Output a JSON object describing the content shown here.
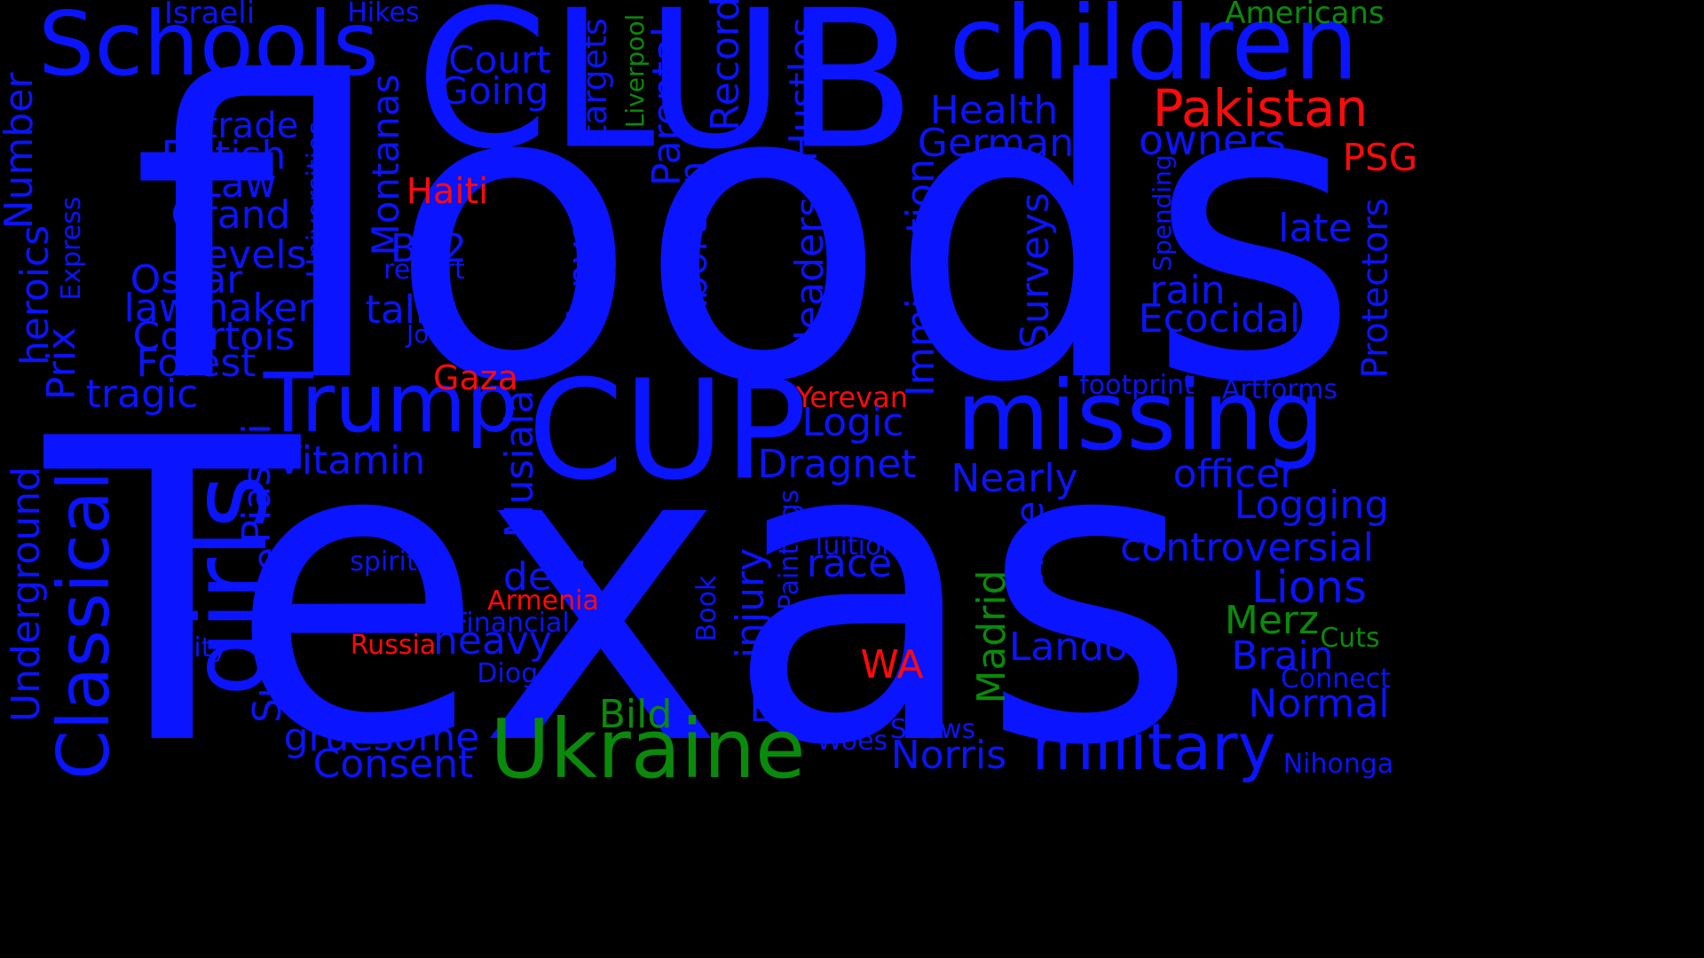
{
  "palette": {
    "blue": "#0a14ff",
    "red": "#ff0a0a",
    "green": "#0a8a0a"
  },
  "words": [
    {
      "id": "floods",
      "text": "floods",
      "color": "blue"
    },
    {
      "id": "texas",
      "text": "Texas",
      "color": "blue"
    },
    {
      "id": "club",
      "text": "CLUB",
      "color": "blue"
    },
    {
      "id": "cup",
      "text": "CUP",
      "color": "blue"
    },
    {
      "id": "children",
      "text": "children",
      "color": "blue"
    },
    {
      "id": "schools",
      "text": "Schools",
      "color": "blue"
    },
    {
      "id": "missing",
      "text": "missing",
      "color": "blue"
    },
    {
      "id": "girls",
      "text": "girls",
      "color": "blue"
    },
    {
      "id": "trump",
      "text": "Trump",
      "color": "blue"
    },
    {
      "id": "ukraine",
      "text": "Ukraine",
      "color": "green"
    },
    {
      "id": "classical",
      "text": "Classical",
      "color": "blue"
    },
    {
      "id": "military",
      "text": "military",
      "color": "blue"
    },
    {
      "id": "pakistan",
      "text": "Pakistan",
      "color": "red"
    },
    {
      "id": "owners",
      "text": "owners",
      "color": "blue"
    },
    {
      "id": "health",
      "text": "Health",
      "color": "blue"
    },
    {
      "id": "german",
      "text": "German",
      "color": "blue"
    },
    {
      "id": "psg",
      "text": "PSG",
      "color": "red"
    },
    {
      "id": "late",
      "text": "late",
      "color": "blue"
    },
    {
      "id": "rain",
      "text": "rain",
      "color": "blue"
    },
    {
      "id": "ecocidal",
      "text": "Ecocidal",
      "color": "blue"
    },
    {
      "id": "protectors",
      "text": "Protectors",
      "color": "blue"
    },
    {
      "id": "spending",
      "text": "Spending",
      "color": "blue"
    },
    {
      "id": "americans",
      "text": "Americans",
      "color": "green"
    },
    {
      "id": "court",
      "text": "Court",
      "color": "blue"
    },
    {
      "id": "going",
      "text": "Going",
      "color": "blue"
    },
    {
      "id": "israeli",
      "text": "Israeli",
      "color": "blue"
    },
    {
      "id": "hikes",
      "text": "Hikes",
      "color": "blue"
    },
    {
      "id": "trade",
      "text": "trade",
      "color": "blue"
    },
    {
      "id": "british",
      "text": "British",
      "color": "blue"
    },
    {
      "id": "law",
      "text": "Law",
      "color": "blue"
    },
    {
      "id": "grand",
      "text": "Grand",
      "color": "blue"
    },
    {
      "id": "levels",
      "text": "Levels",
      "color": "blue"
    },
    {
      "id": "oscar",
      "text": "Oscar",
      "color": "blue"
    },
    {
      "id": "lawmakers",
      "text": "lawmakers",
      "color": "blue"
    },
    {
      "id": "courtois",
      "text": "Courtois",
      "color": "blue"
    },
    {
      "id": "forest",
      "text": "Forest",
      "color": "blue"
    },
    {
      "id": "tragic",
      "text": "tragic",
      "color": "blue"
    },
    {
      "id": "haiti",
      "text": "Haiti",
      "color": "red"
    },
    {
      "id": "b12",
      "text": "B12",
      "color": "blue"
    },
    {
      "id": "report",
      "text": "report",
      "color": "blue"
    },
    {
      "id": "talks",
      "text": "talks",
      "color": "blue"
    },
    {
      "id": "jotas",
      "text": "Jotas",
      "color": "blue"
    },
    {
      "id": "gaza",
      "text": "Gaza",
      "color": "red"
    },
    {
      "id": "vitamin",
      "text": "Vitamin",
      "color": "blue"
    },
    {
      "id": "number",
      "text": "Number",
      "color": "blue"
    },
    {
      "id": "heroics",
      "text": "heroics",
      "color": "blue"
    },
    {
      "id": "express",
      "text": "Express",
      "color": "blue"
    },
    {
      "id": "prix",
      "text": "Prix",
      "color": "blue"
    },
    {
      "id": "universities",
      "text": "Universities",
      "color": "blue"
    },
    {
      "id": "montanas",
      "text": "Montanas",
      "color": "blue"
    },
    {
      "id": "targets",
      "text": "targets",
      "color": "blue"
    },
    {
      "id": "liverpool",
      "text": "Liverpool",
      "color": "green"
    },
    {
      "id": "parental",
      "text": "Parental",
      "color": "blue"
    },
    {
      "id": "record",
      "text": "Record",
      "color": "blue"
    },
    {
      "id": "hustles",
      "text": "Hustles",
      "color": "blue"
    },
    {
      "id": "kenyan",
      "text": "Kenyan",
      "color": "blue"
    },
    {
      "id": "abortion",
      "text": "Abortion",
      "color": "blue"
    },
    {
      "id": "leaders",
      "text": "leaders",
      "color": "blue"
    },
    {
      "id": "immigration",
      "text": "Immigration",
      "color": "blue"
    },
    {
      "id": "surveys",
      "text": "Surveys",
      "color": "blue"
    },
    {
      "id": "yerevan",
      "text": "Yerevan",
      "color": "red"
    },
    {
      "id": "logic",
      "text": "Logic",
      "color": "blue"
    },
    {
      "id": "dragnet",
      "text": "Dragnet",
      "color": "blue"
    },
    {
      "id": "footprint",
      "text": "footprint",
      "color": "blue"
    },
    {
      "id": "artforms",
      "text": "Artforms",
      "color": "blue"
    },
    {
      "id": "nearly",
      "text": "Nearly",
      "color": "blue"
    },
    {
      "id": "officer",
      "text": "officer",
      "color": "blue"
    },
    {
      "id": "logging",
      "text": "Logging",
      "color": "blue"
    },
    {
      "id": "controversial",
      "text": "controversial",
      "color": "blue"
    },
    {
      "id": "lions",
      "text": "Lions",
      "color": "blue"
    },
    {
      "id": "merz",
      "text": "Merz",
      "color": "green"
    },
    {
      "id": "cuts",
      "text": "Cuts",
      "color": "green"
    },
    {
      "id": "brain",
      "text": "Brain",
      "color": "blue"
    },
    {
      "id": "connect",
      "text": "Connect",
      "color": "blue"
    },
    {
      "id": "normal",
      "text": "Normal",
      "color": "blue"
    },
    {
      "id": "nihonga",
      "text": "Nihonga",
      "color": "blue"
    },
    {
      "id": "text",
      "text": "Text",
      "color": "blue"
    },
    {
      "id": "piastri",
      "text": "Piastri",
      "color": "blue"
    },
    {
      "id": "supreme",
      "text": "Supreme",
      "color": "blue"
    },
    {
      "id": "underground",
      "text": "Underground",
      "color": "blue"
    },
    {
      "id": "spirit",
      "text": "spirit",
      "color": "blue"
    },
    {
      "id": "musiala",
      "text": "Musiala",
      "color": "blue"
    },
    {
      "id": "deal",
      "text": "deal",
      "color": "blue"
    },
    {
      "id": "armenia",
      "text": "Armenia",
      "color": "red"
    },
    {
      "id": "financial",
      "text": "Financial",
      "color": "blue"
    },
    {
      "id": "heavy",
      "text": "heavy",
      "color": "blue"
    },
    {
      "id": "russia",
      "text": "Russia",
      "color": "red"
    },
    {
      "id": "city",
      "text": "city",
      "color": "blue"
    },
    {
      "id": "diogo",
      "text": "Diogo",
      "color": "blue"
    },
    {
      "id": "book",
      "text": "Book",
      "color": "blue"
    },
    {
      "id": "injury",
      "text": "injury",
      "color": "blue"
    },
    {
      "id": "paintings",
      "text": "Paintings",
      "color": "blue"
    },
    {
      "id": "tuition",
      "text": "Tuition",
      "color": "blue"
    },
    {
      "id": "race",
      "text": "race",
      "color": "blue"
    },
    {
      "id": "wa",
      "text": "WA",
      "color": "red"
    },
    {
      "id": "madrid",
      "text": "Madrid",
      "color": "green"
    },
    {
      "id": "police",
      "text": "police",
      "color": "blue"
    },
    {
      "id": "lando",
      "text": "Lando",
      "color": "blue"
    },
    {
      "id": "bild",
      "text": "Bild",
      "color": "green"
    },
    {
      "id": "eu",
      "text": "EU",
      "color": "blue"
    },
    {
      "id": "gruesome",
      "text": "gruesome",
      "color": "blue"
    },
    {
      "id": "consent",
      "text": "Consent",
      "color": "blue"
    },
    {
      "id": "woes",
      "text": "Woes",
      "color": "blue"
    },
    {
      "id": "shows",
      "text": "Shows",
      "color": "blue"
    },
    {
      "id": "norris",
      "text": "Norris",
      "color": "blue"
    }
  ]
}
